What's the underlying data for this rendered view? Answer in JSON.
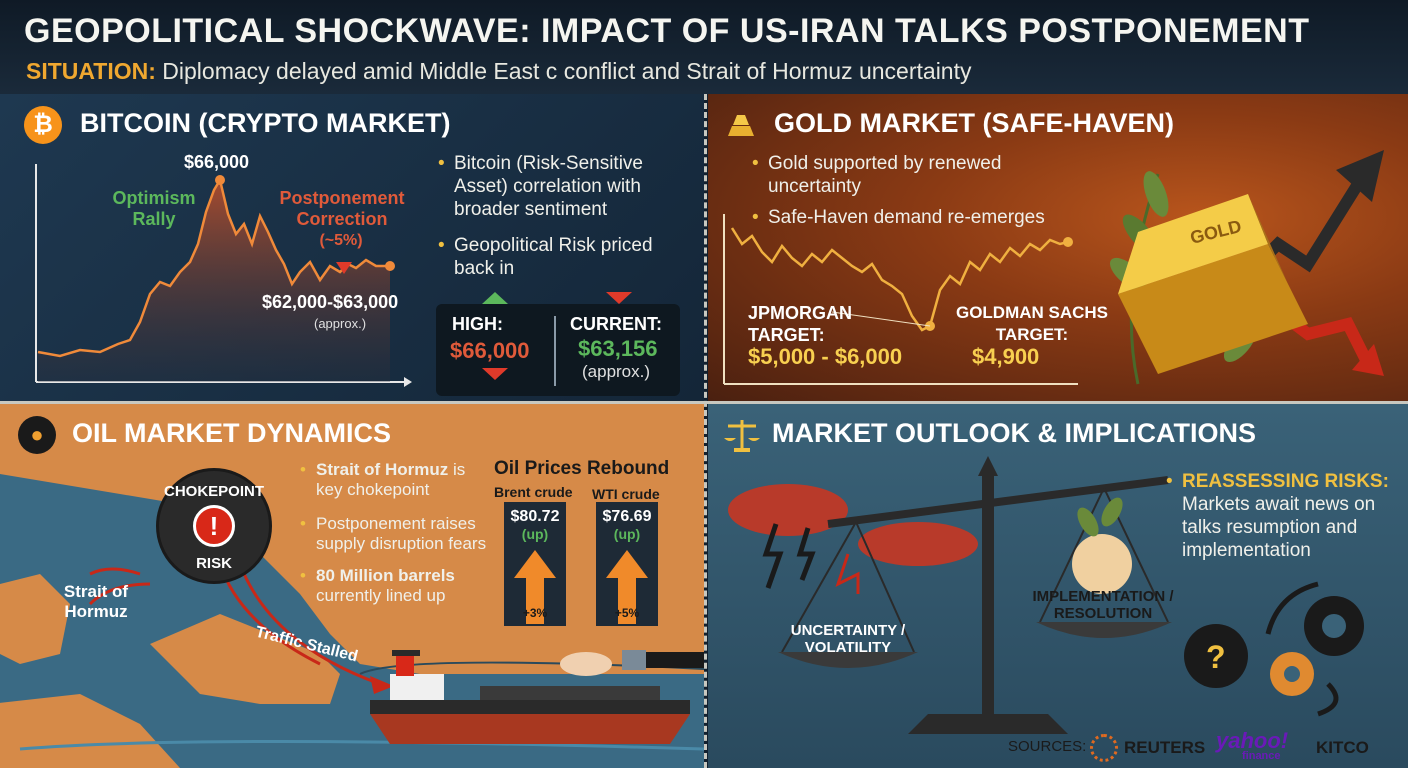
{
  "header": {
    "title": "GEOPOLITICAL SHOCKWAVE: IMPACT OF US-IRAN TALKS POSTPONEMENT",
    "situation_label": "SITUATION:",
    "situation_text": "Diplomacy delayed amid Middle East c conflict and Strait of Hormuz uncertainty"
  },
  "bitcoin": {
    "title": "BITCOIN (CRYPTO MARKET)",
    "icon": "bitcoin-icon",
    "peak_label": "$66,000",
    "rally_label": "Optimism Rally",
    "correction_label": "Postponement Correction",
    "correction_pct": "(~5%)",
    "range_label": "$62,000-$63,000",
    "range_note": "(approx.)",
    "bullets": [
      "Bitcoin (Risk-Sensitive Asset) correlation with broader sentiment",
      "Geopolitical Risk priced back in"
    ],
    "high_label": "HIGH:",
    "high_value": "$66,000",
    "current_label": "CURRENT:",
    "current_value": "$63,156",
    "current_note": "(approx.)",
    "colors": {
      "line": "#f08a3a",
      "rally": "#5cb85c",
      "correction": "#e05a3a"
    }
  },
  "gold": {
    "title": "GOLD MARKET (SAFE-HAVEN)",
    "icon": "gold-bars-icon",
    "bullets": [
      "Gold supported by renewed uncertainty",
      "Safe-Haven demand re-emerges"
    ],
    "jpm_label": "JPMORGAN TARGET:",
    "jpm_value": "$5,000 - $6,000",
    "gs_label": "GOLDMAN SACHS TARGET:",
    "gs_value": "$4,900",
    "bar_text": "GOLD"
  },
  "oil": {
    "title": "OIL MARKET DYNAMICS",
    "icon": "oil-drop-icon",
    "chokepoint_top": "CHOKEPOINT",
    "chokepoint_bottom": "RISK",
    "strait_label": "Strait of Hormuz",
    "traffic_label": "Traffic Stalled",
    "bullets": [
      {
        "bold": "Strait of Hormuz",
        "rest": "is key chokepoint"
      },
      {
        "bold": "",
        "rest": "Postponement raises supply disruption fears"
      },
      {
        "bold": "80 Million barrels",
        "rest": "currently lined up"
      }
    ],
    "rebound_title": "Oil Prices Rebound",
    "brent": {
      "name": "Brent crude",
      "price": "$80.72",
      "dir": "(up)",
      "pct": "+3%"
    },
    "wti": {
      "name": "WTI crude",
      "price": "$76.69",
      "dir": "(up)",
      "pct": "+5%"
    }
  },
  "outlook": {
    "title": "MARKET OUTLOOK & IMPLICATIONS",
    "icon": "scales-icon",
    "bullet_bold": "REASSESSING RISKS:",
    "bullet_text": "Markets await news on talks resumption and implementation",
    "left_pan": "UNCERTAINTY / VOLATILITY",
    "right_pan": "IMPLEMENTATION / RESOLUTION"
  },
  "sources": {
    "label": "SOURCES:",
    "items": [
      "REUTERS",
      "yahoo!",
      "finance",
      "KITCO"
    ]
  }
}
